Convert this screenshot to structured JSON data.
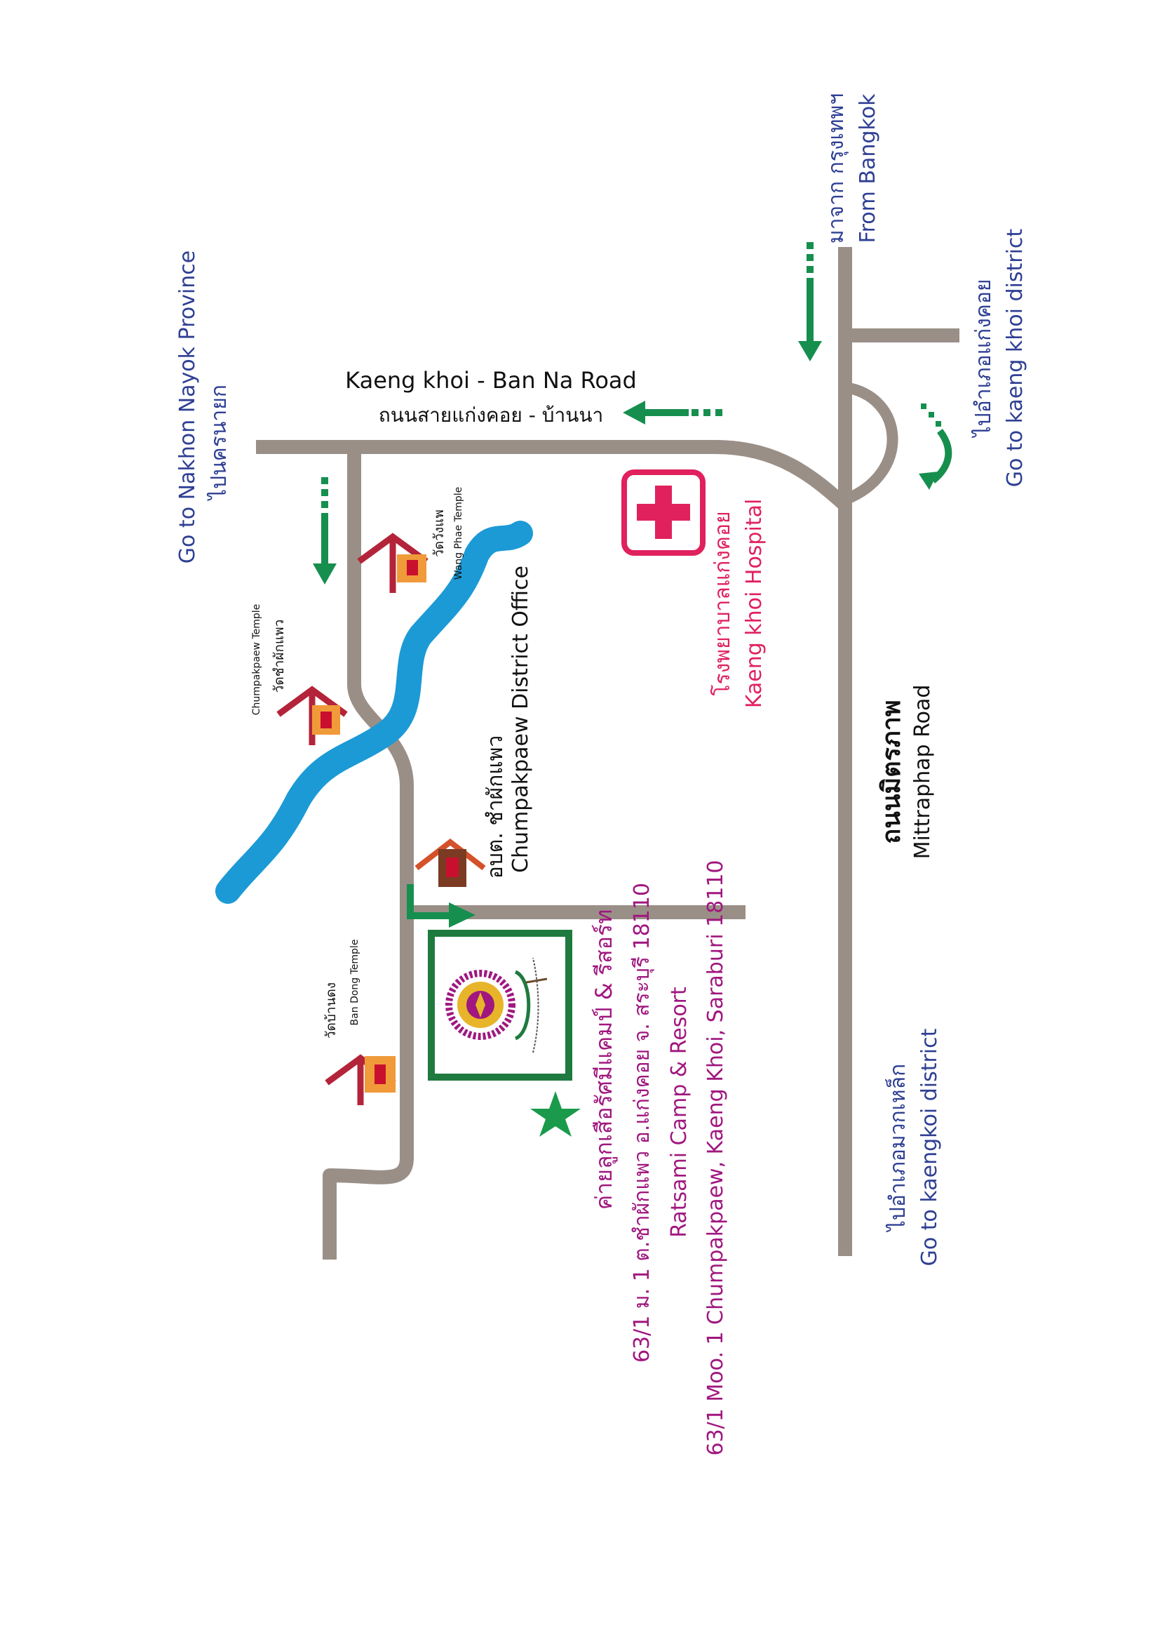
{
  "colors": {
    "road": "#9a8f87",
    "river": "#1b9ad6",
    "arrow": "#168f4e",
    "blue_text": "#2e3f93",
    "magenta_text": "#a0177f",
    "hospital_red": "#e0215e",
    "temple_roof": "#b3243a",
    "temple_body": "#f09a3a",
    "temple_door": "#c8102e",
    "office_roof": "#d4512a",
    "office_body": "#7a3b22",
    "camp_frame": "#1f7a3f",
    "logo_ring": "#a0177f",
    "logo_flower": "#e8b429"
  },
  "labels": {
    "nakhon_nayok_en": "Go to Nakhon Nayok Province",
    "nakhon_nayok_th": "ไปนครนายก",
    "from_bangkok_th": "มาจาก กรุงเทพฯ",
    "from_bangkok_en": "From Bangkok",
    "kaeng_khoi_th": "ไปอำเภอแก่งคอย",
    "kaeng_khoi_en": "Go to kaeng khoi district",
    "road_ban_na_en": "Kaeng khoi - Ban Na Road",
    "road_ban_na_th": "ถนนสายแก่งคอย - บ้านนา",
    "hospital_th": "โรงพยาบาลแก่งคอย",
    "hospital_en": "Kaeng khoi Hospital",
    "mittraphap_th": "ถนนมิตรภาพ",
    "mittraphap_en": "Mittraphap Road",
    "muak_lek_th": "ไปอำเภอมวกเหล็ก",
    "muak_lek_en": "Go to kaengkoi district",
    "wang_phae_th": "วัดวังแพ",
    "wang_phae_en": "Wang Phae Temple",
    "chumpakpaew_temple_th": "วัดชำผักแพว",
    "chumpakpaew_temple_en": "Chumpakpaew Temple",
    "office_th": "อบต. ชำผักแพว",
    "office_en": "Chumpakpaew District Office",
    "ban_dong_th": "วัดบ้านดง",
    "ban_dong_en": "Ban Dong Temple",
    "camp_name_th": "ค่ายลูกเสือรัศมีแคมป์ & รีสอร์ท",
    "camp_addr_th": "63/1 ม. 1 ต.ชำผักแพว อ.แก่งคอย จ. สระบุรี 18110",
    "camp_name_en": "Ratsami Camp & Resort",
    "camp_addr_en": "63/1 Moo. 1 Chumpakpaew, Kaeng Khoi, Saraburi 18110"
  }
}
